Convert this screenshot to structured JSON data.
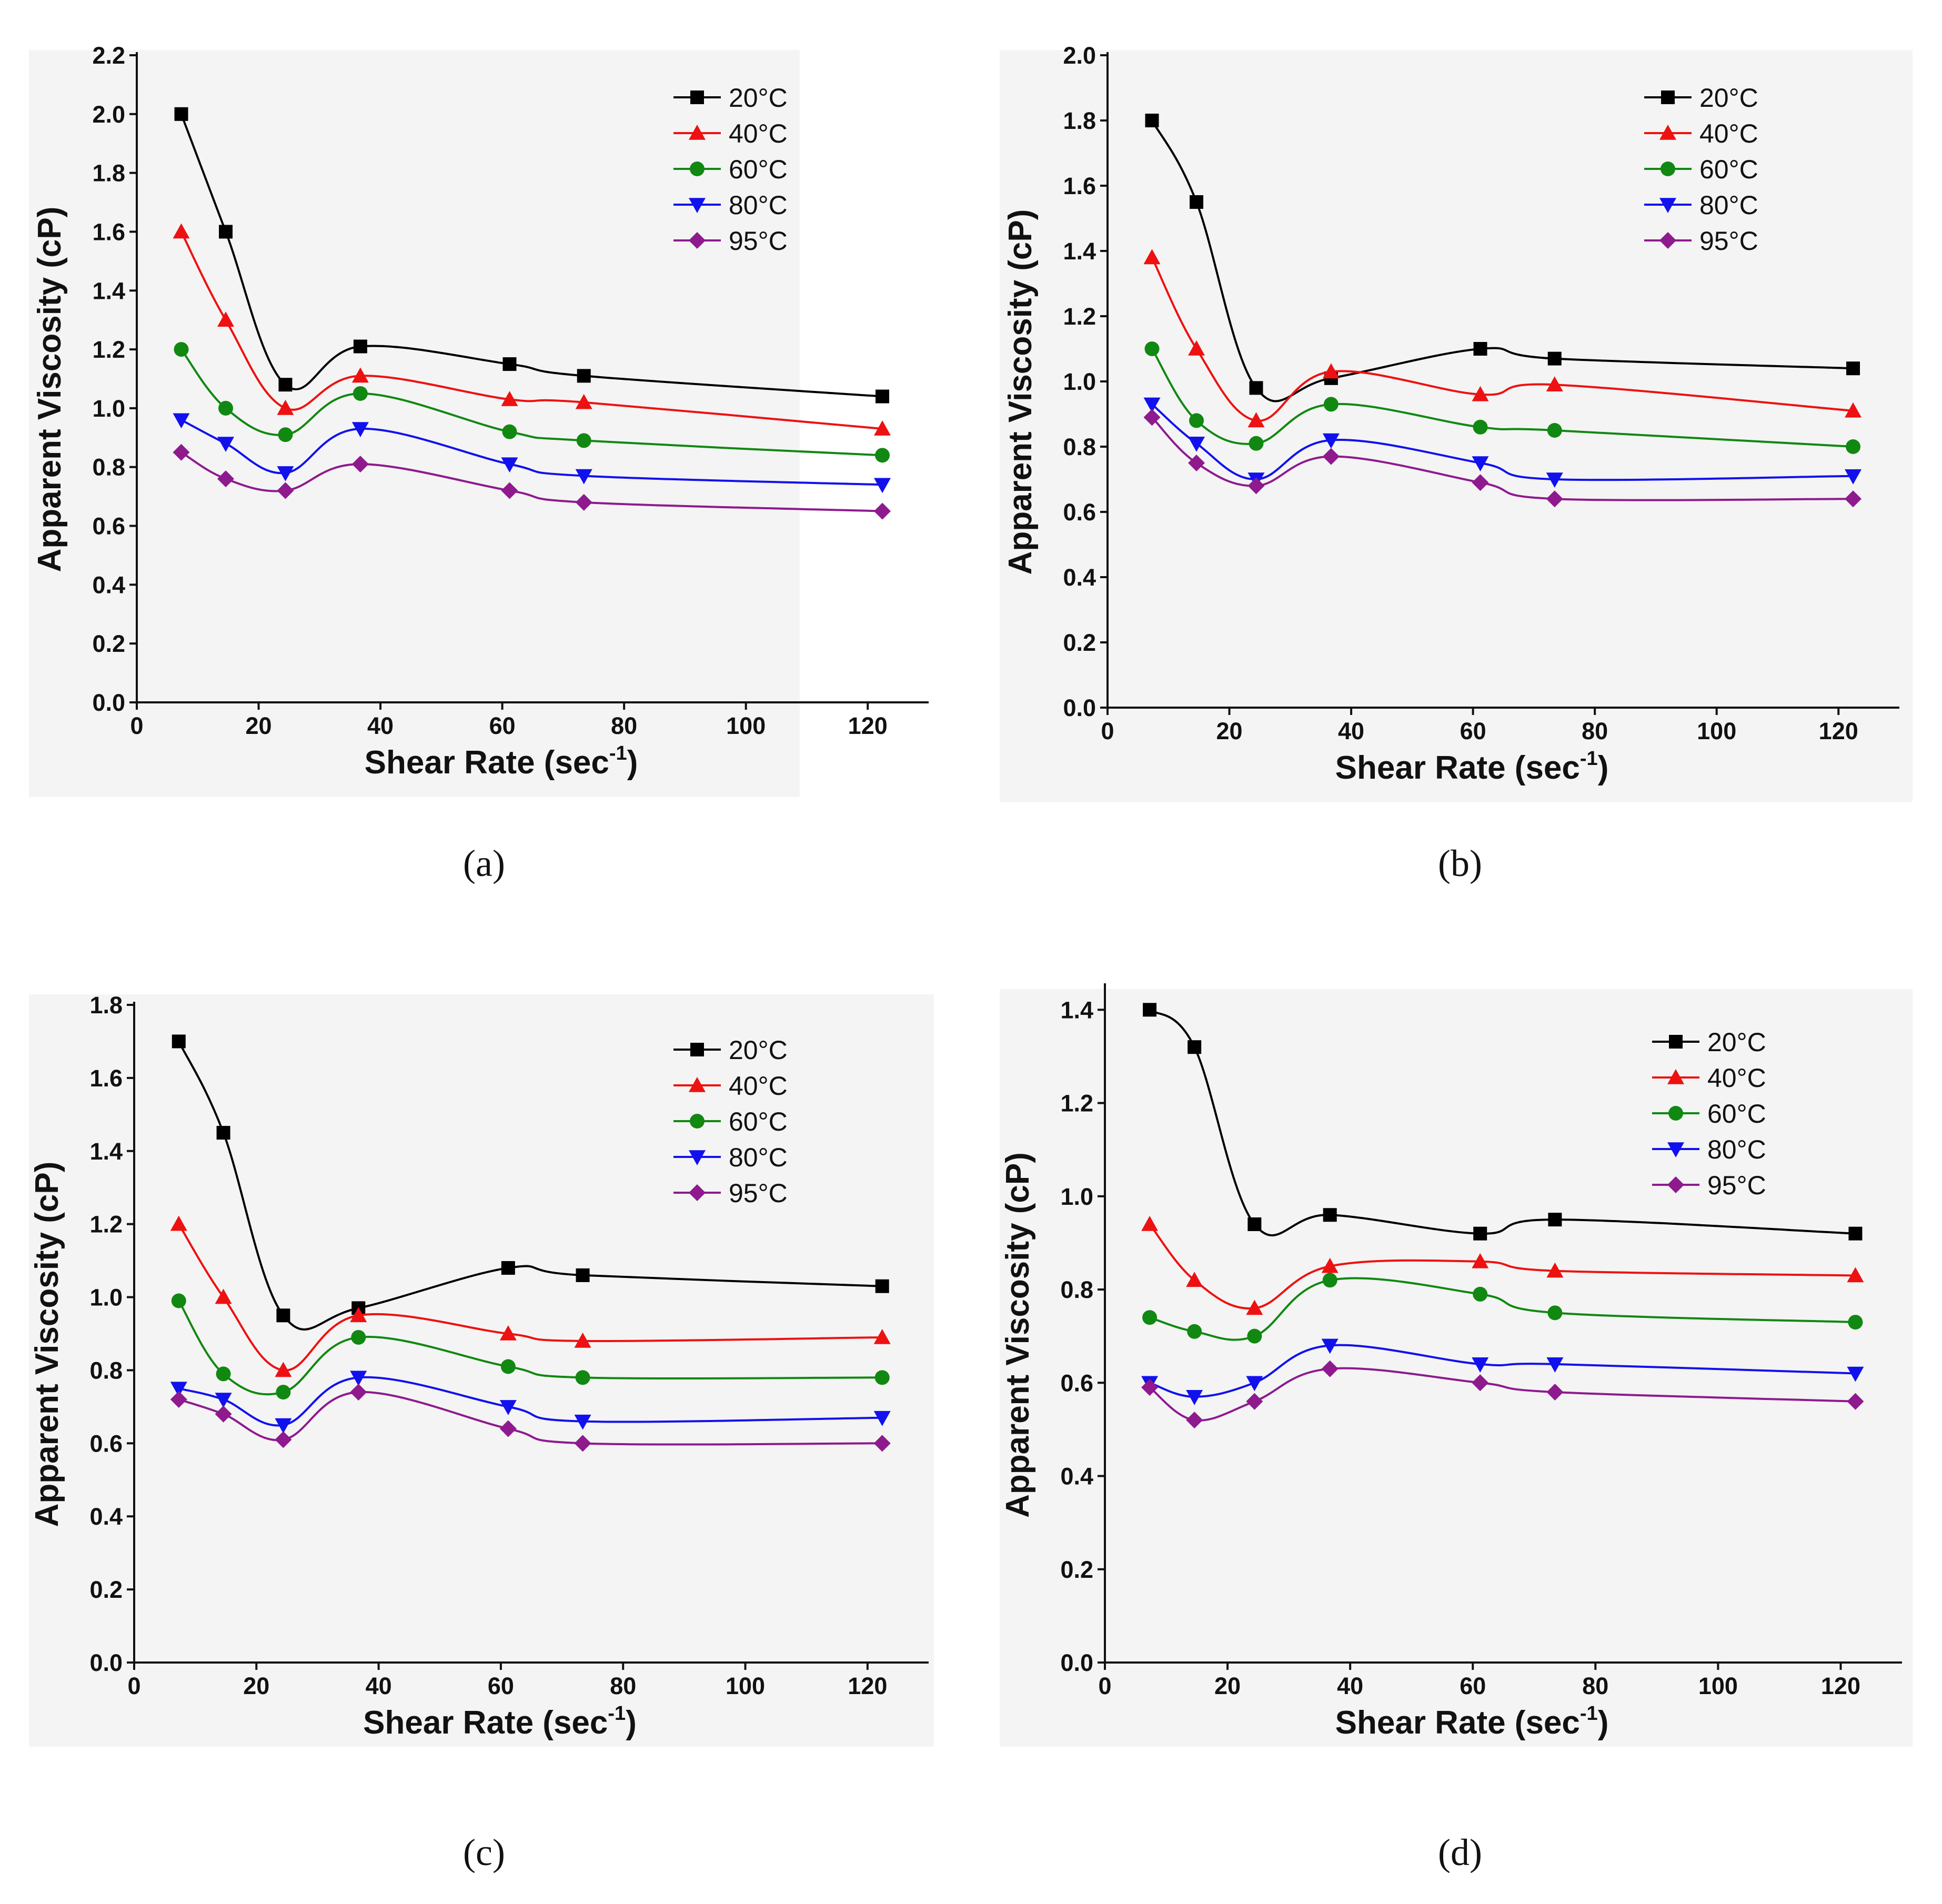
{
  "figure": {
    "series_names": [
      "20°C",
      "40°C",
      "60°C",
      "80°C",
      "95°C"
    ],
    "series_colors": [
      "#000000",
      "#ee1111",
      "#118811",
      "#1111ee",
      "#8e1a8e"
    ],
    "series_markers": [
      "square",
      "triangle-up",
      "circle",
      "triangle-down",
      "diamond"
    ],
    "background": "#f4f4f4"
  },
  "chart_data": [
    {
      "type": "line",
      "caption": "(a)",
      "xlabel": "Shear Rate (sec",
      "xlabel_sup": "-1",
      "xlabel_end": ")",
      "ylabel": "Apparent Viscosity (cP)",
      "xlim": [
        0,
        130
      ],
      "ylim": [
        0,
        2.2
      ],
      "xticks": [
        "0",
        "20",
        "40",
        "60",
        "80",
        "100",
        "120"
      ],
      "yticks": [
        "0.0",
        "0.2",
        "0.4",
        "0.6",
        "0.8",
        "1.0",
        "1.2",
        "1.4",
        "1.6",
        "1.8",
        "2.0",
        "2.2"
      ],
      "legend": [
        "20°C",
        "40°C",
        "60°C",
        "80°C",
        "95°C"
      ],
      "legend_position": "top-right",
      "x": [
        7.3,
        14.6,
        24.4,
        36.7,
        61.2,
        73.4,
        122.4
      ],
      "series": [
        {
          "name": "20°C",
          "values": [
            2.0,
            1.6,
            1.08,
            1.21,
            1.15,
            1.11,
            1.04
          ]
        },
        {
          "name": "40°C",
          "values": [
            1.6,
            1.3,
            1.0,
            1.11,
            1.03,
            1.02,
            0.93
          ]
        },
        {
          "name": "60°C",
          "values": [
            1.2,
            1.0,
            0.91,
            1.05,
            0.92,
            0.89,
            0.84
          ]
        },
        {
          "name": "80°C",
          "values": [
            0.96,
            0.88,
            0.78,
            0.93,
            0.81,
            0.77,
            0.74
          ]
        },
        {
          "name": "95°C",
          "values": [
            0.85,
            0.76,
            0.72,
            0.81,
            0.72,
            0.68,
            0.65
          ]
        }
      ]
    },
    {
      "type": "line",
      "caption": "(b)",
      "xlabel": "Shear Rate (sec",
      "xlabel_sup": "-1",
      "xlabel_end": ")",
      "ylabel": "Apparent Viscosity (cP)",
      "xlim": [
        0,
        130
      ],
      "ylim": [
        0,
        2.0
      ],
      "xticks": [
        "0",
        "20",
        "40",
        "60",
        "80",
        "100",
        "120"
      ],
      "yticks": [
        "0.0",
        "0.2",
        "0.4",
        "0.6",
        "0.8",
        "1.0",
        "1.2",
        "1.4",
        "1.6",
        "1.8",
        "2.0"
      ],
      "legend": [
        "20°C",
        "40°C",
        "60°C",
        "80°C",
        "95°C"
      ],
      "legend_position": "top-right",
      "x": [
        7.3,
        14.6,
        24.4,
        36.7,
        61.2,
        73.4,
        122.4
      ],
      "series": [
        {
          "name": "20°C",
          "values": [
            1.8,
            1.55,
            0.98,
            1.01,
            1.1,
            1.07,
            1.04
          ]
        },
        {
          "name": "40°C",
          "values": [
            1.38,
            1.1,
            0.88,
            1.03,
            0.96,
            0.99,
            0.91
          ]
        },
        {
          "name": "60°C",
          "values": [
            1.1,
            0.88,
            0.81,
            0.93,
            0.86,
            0.85,
            0.8
          ]
        },
        {
          "name": "80°C",
          "values": [
            0.93,
            0.81,
            0.7,
            0.82,
            0.75,
            0.7,
            0.71
          ]
        },
        {
          "name": "95°C",
          "values": [
            0.89,
            0.75,
            0.68,
            0.77,
            0.69,
            0.64,
            0.64
          ]
        }
      ]
    },
    {
      "type": "line",
      "caption": "(c)",
      "xlabel": "Shear Rate (sec",
      "xlabel_sup": "-1",
      "xlabel_end": ")",
      "ylabel": "Apparent Viscosity (cP)",
      "xlim": [
        0,
        130
      ],
      "ylim": [
        0,
        1.8
      ],
      "xticks": [
        "0",
        "20",
        "40",
        "60",
        "80",
        "100",
        "120"
      ],
      "yticks": [
        "0.0",
        "0.2",
        "0.4",
        "0.6",
        "0.8",
        "1.0",
        "1.2",
        "1.4",
        "1.6",
        "1.8"
      ],
      "legend": [
        "20°C",
        "40°C",
        "60°C",
        "80°C",
        "95°C"
      ],
      "legend_position": "top-right",
      "x": [
        7.3,
        14.6,
        24.4,
        36.7,
        61.2,
        73.4,
        122.4
      ],
      "series": [
        {
          "name": "20°C",
          "values": [
            1.7,
            1.45,
            0.95,
            0.97,
            1.08,
            1.06,
            1.03
          ]
        },
        {
          "name": "40°C",
          "values": [
            1.2,
            1.0,
            0.8,
            0.95,
            0.9,
            0.88,
            0.89
          ]
        },
        {
          "name": "60°C",
          "values": [
            0.99,
            0.79,
            0.74,
            0.89,
            0.81,
            0.78,
            0.78
          ]
        },
        {
          "name": "80°C",
          "values": [
            0.75,
            0.72,
            0.65,
            0.78,
            0.7,
            0.66,
            0.67
          ]
        },
        {
          "name": "95°C",
          "values": [
            0.72,
            0.68,
            0.61,
            0.74,
            0.64,
            0.6,
            0.6
          ]
        }
      ]
    },
    {
      "type": "line",
      "caption": "(d)",
      "xlabel": "Shear Rate (sec",
      "xlabel_sup": "-1",
      "xlabel_end": ")",
      "ylabel": "Apparent Viscosity (cP)",
      "xlim": [
        0,
        130
      ],
      "ylim": [
        0,
        1.45
      ],
      "xticks": [
        "0",
        "20",
        "40",
        "60",
        "80",
        "100",
        "120"
      ],
      "yticks": [
        "0.0",
        "0.2",
        "0.4",
        "0.6",
        "0.8",
        "1.0",
        "1.2",
        "1.4"
      ],
      "legend": [
        "20°C",
        "40°C",
        "60°C",
        "80°C",
        "95°C"
      ],
      "legend_position": "top-right",
      "x": [
        7.3,
        14.6,
        24.4,
        36.7,
        61.2,
        73.4,
        122.4
      ],
      "series": [
        {
          "name": "20°C",
          "values": [
            1.4,
            1.32,
            0.94,
            0.96,
            0.92,
            0.95,
            0.92
          ]
        },
        {
          "name": "40°C",
          "values": [
            0.94,
            0.82,
            0.76,
            0.85,
            0.86,
            0.84,
            0.83
          ]
        },
        {
          "name": "60°C",
          "values": [
            0.74,
            0.71,
            0.7,
            0.82,
            0.79,
            0.75,
            0.73
          ]
        },
        {
          "name": "80°C",
          "values": [
            0.6,
            0.57,
            0.6,
            0.68,
            0.64,
            0.64,
            0.62
          ]
        },
        {
          "name": "95°C",
          "values": [
            0.59,
            0.52,
            0.56,
            0.63,
            0.6,
            0.58,
            0.56
          ]
        }
      ]
    }
  ]
}
